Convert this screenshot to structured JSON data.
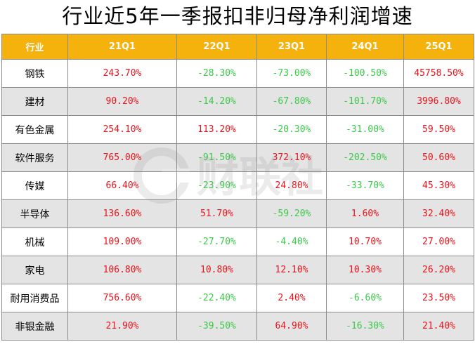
{
  "title": "行业近5年一季报扣非归母净利润增速",
  "header": [
    "行业",
    "21Q1",
    "22Q1",
    "23Q1",
    "24Q1",
    "25Q1"
  ],
  "rows": [
    {
      "industry": "钢铁",
      "values": [
        "243.70%",
        "-28.30%",
        "-73.00%",
        "-100.50%",
        "45758.50%"
      ]
    },
    {
      "industry": "建材",
      "values": [
        "90.20%",
        "-14.20%",
        "-67.80%",
        "-101.70%",
        "3996.80%"
      ]
    },
    {
      "industry": "有色金属",
      "values": [
        "254.10%",
        "113.20%",
        "-20.30%",
        "-31.00%",
        "59.50%"
      ]
    },
    {
      "industry": "软件服务",
      "values": [
        "765.00%",
        "-91.50%",
        "372.10%",
        "-202.50%",
        "50.60%"
      ]
    },
    {
      "industry": "传媒",
      "values": [
        "66.40%",
        "-23.90%",
        "24.80%",
        "-33.70%",
        "45.30%"
      ]
    },
    {
      "industry": "半导体",
      "values": [
        "136.60%",
        "51.70%",
        "-59.20%",
        "1.60%",
        "32.40%"
      ]
    },
    {
      "industry": "机械",
      "values": [
        "109.00%",
        "-27.70%",
        "-4.40%",
        "10.70%",
        "27.00%"
      ]
    },
    {
      "industry": "家电",
      "values": [
        "106.80%",
        "10.80%",
        "12.10%",
        "10.30%",
        "26.20%"
      ]
    },
    {
      "industry": "耐用消费品",
      "values": [
        "756.60%",
        "-22.40%",
        "2.40%",
        "-6.60%",
        "23.50%"
      ]
    },
    {
      "industry": "非银金融",
      "values": [
        "21.90%",
        "-39.50%",
        "64.90%",
        "-16.30%",
        "21.40%"
      ]
    }
  ],
  "colors": {
    "header_bg": "#f5b10c",
    "positive": "#e8141c",
    "negative": "#3cc84a",
    "stripe": "#e4e4e4"
  },
  "watermark": {
    "icon": "watermark-logo-icon",
    "text": "财联社"
  }
}
